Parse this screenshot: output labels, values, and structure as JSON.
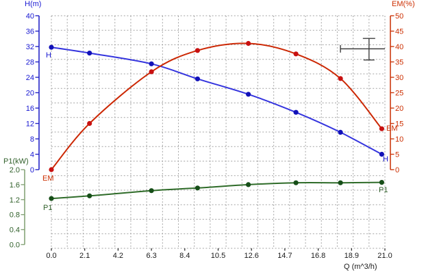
{
  "chart_data": {
    "type": "line",
    "title": "",
    "description": "Pump performance test curves: head H, efficiency EM and input power P1 versus flow Q",
    "grid": true,
    "x": {
      "label": "Q (m^3/h)",
      "range": [
        0,
        21
      ],
      "tick_labels": [
        "0.0",
        "2.1",
        "4.2",
        "6.3",
        "8.4",
        "10.5",
        "12.6",
        "14.7",
        "16.8",
        "18.9",
        "21.0"
      ]
    },
    "axes": {
      "H": {
        "label": "H(m)",
        "range": [
          0,
          40
        ],
        "tick_labels": [
          "40",
          "36",
          "32",
          "28",
          "24",
          "20",
          "16",
          "12",
          "8",
          "4",
          "0"
        ],
        "color": "#1717d2",
        "line_color": "#2424c8"
      },
      "EM": {
        "label": "EM(%)",
        "range": [
          0,
          50
        ],
        "tick_labels": [
          "50",
          "45",
          "40",
          "35",
          "30",
          "25",
          "20",
          "15",
          "10",
          "5",
          "0"
        ],
        "color": "#cc2e00",
        "line_color": "#cc3a10"
      },
      "P1": {
        "label": "P1(kW)",
        "range": [
          0,
          2
        ],
        "tick_labels": [
          "2.0",
          "1.6",
          "1.2",
          "0.8",
          "0.4",
          "0.0"
        ],
        "color": "#2f5f29",
        "line_color": "#86a478"
      }
    },
    "q_points": [
      0.0,
      2.4,
      6.3,
      9.2,
      12.4,
      15.4,
      18.2,
      20.8
    ],
    "series": [
      {
        "name": "H",
        "axis": "H",
        "line_color": "#3434de",
        "point_color": "#1212b8",
        "values": [
          31.8,
          30.3,
          27.5,
          23.6,
          19.6,
          14.9,
          9.7,
          4.0
        ]
      },
      {
        "name": "EM",
        "axis": "EM",
        "line_color": "#cc2804",
        "point_color": "#c81111",
        "values": [
          0.0,
          15.0,
          31.8,
          38.7,
          41.0,
          37.6,
          29.6,
          13.3
        ]
      },
      {
        "name": "P1",
        "axis": "P1",
        "line_color": "#2e6b28",
        "point_color": "#164e18",
        "values": [
          1.23,
          1.3,
          1.44,
          1.51,
          1.6,
          1.65,
          1.65,
          1.66
        ]
      }
    ],
    "duty_marker": {
      "shape": "error-bar-cross",
      "color": "#3d3d3d",
      "q": 20.0,
      "h": 31.4,
      "q_range": [
        18.2,
        21.0
      ],
      "h_range": [
        28.5,
        34.1
      ]
    }
  },
  "labels": {
    "h_axis_title": "H(m)",
    "em_axis_title": "EM(%)",
    "p1_axis_title": "P1(kW)",
    "q_axis_title": "Q (m^3/h)",
    "h_curve_start": "H",
    "em_curve_start": "EM",
    "p1_curve_start": "P1",
    "h_curve_end": "H",
    "em_curve_end": "EM",
    "p1_curve_end": "P1"
  }
}
